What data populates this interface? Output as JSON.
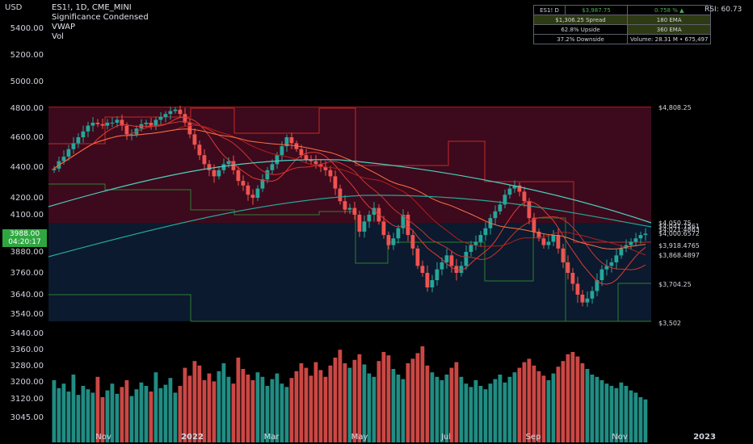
{
  "header": {
    "usd_label": "USD",
    "symbol_line": "ES1!, 1D, CME_MINI",
    "indicator1": "Significance Condensed",
    "indicator2": "VWAP",
    "indicator3": "Vol"
  },
  "stats_table": {
    "row1": {
      "symbol": "ES1! D",
      "price": "$3,987.75",
      "change": "0.758 % ▲",
      "rsi": "RSI: 60.73"
    },
    "row2": {
      "spread": "$1,306.25 Spread",
      "ema1": "180 EMA"
    },
    "row3": {
      "upside": "62.8% Upside",
      "ema2": "360 EMA"
    },
    "row4": {
      "downside": "37.2% Downside",
      "volume": "Volume:  28.31 M  •  675,497"
    }
  },
  "price_badge": {
    "price": "3988.00",
    "countdown": "04:20:17"
  },
  "colors": {
    "up": "#26a69a",
    "down": "#ef5350",
    "green_text": "#4caf50",
    "badge": "#2fa640",
    "upper_zone": "#3c0a1c",
    "lower_zone": "#0b1a2e"
  },
  "chart_data": {
    "type": "candlestick",
    "y_axis_labels": [
      "5400.00",
      "5200.00",
      "5000.00",
      "4800.00",
      "4600.00",
      "4400.00",
      "4200.00",
      "4100.00",
      "3880.00",
      "3760.00",
      "3640.00",
      "3540.00",
      "3440.00",
      "3360.00",
      "3280.00",
      "3200.00",
      "3120.00",
      "3045.00"
    ],
    "x_axis_labels": [
      "Nov",
      "2022",
      "Mar",
      "May",
      "Jul",
      "Sep",
      "Nov",
      "2023"
    ],
    "level_labels": [
      "$4,808.25",
      "$4,050.75",
      "$4,041.7561",
      "$4,021.4863",
      "$4,000.6572",
      "$3,918.4765",
      "$3,868.4897",
      "$3,704.25",
      "$3,502"
    ],
    "levels": {
      "high": 4808.25,
      "low": 3502,
      "ema180": 4050.75,
      "ema360": 4041.7561
    },
    "close_series": [
      4390,
      4440,
      4470,
      4520,
      4560,
      4600,
      4640,
      4680,
      4700,
      4690,
      4680,
      4700,
      4700,
      4720,
      4680,
      4620,
      4620,
      4660,
      4690,
      4700,
      4680,
      4720,
      4740,
      4760,
      4780,
      4790,
      4760,
      4700,
      4620,
      4550,
      4480,
      4420,
      4380,
      4340,
      4380,
      4420,
      4440,
      4380,
      4310,
      4280,
      4220,
      4200,
      4260,
      4320,
      4380,
      4420,
      4480,
      4540,
      4600,
      4560,
      4520,
      4480,
      4450,
      4440,
      4420,
      4400,
      4380,
      4340,
      4260,
      4180,
      4130,
      4140,
      4100,
      4000,
      4060,
      4100,
      4140,
      4060,
      3980,
      3920,
      3960,
      4020,
      4100,
      3980,
      3900,
      3800,
      3760,
      3680,
      3720,
      3780,
      3820,
      3860,
      3800,
      3760,
      3800,
      3880,
      3920,
      3940,
      3980,
      4020,
      4080,
      4120,
      4160,
      4220,
      4260,
      4280,
      4240,
      4180,
      4080,
      4000,
      3960,
      3920,
      3940,
      3980,
      3900,
      3820,
      3760,
      3700,
      3640,
      3600,
      3620,
      3660,
      3720,
      3780,
      3800,
      3820,
      3860,
      3900,
      3920,
      3940,
      3960,
      3980,
      3988
    ],
    "volume_series": [
      0.55,
      0.48,
      0.52,
      0.45,
      0.6,
      0.42,
      0.5,
      0.47,
      0.44,
      0.58,
      0.4,
      0.46,
      0.52,
      0.43,
      0.49,
      0.55,
      0.41,
      0.47,
      0.53,
      0.5,
      0.45,
      0.62,
      0.48,
      0.51,
      0.57,
      0.44,
      0.5,
      0.66,
      0.59,
      0.72,
      0.68,
      0.55,
      0.61,
      0.54,
      0.63,
      0.7,
      0.58,
      0.52,
      0.75,
      0.65,
      0.6,
      0.55,
      0.62,
      0.58,
      0.5,
      0.56,
      0.61,
      0.52,
      0.49,
      0.57,
      0.63,
      0.7,
      0.66,
      0.59,
      0.71,
      0.64,
      0.58,
      0.68,
      0.75,
      0.82,
      0.7,
      0.66,
      0.73,
      0.78,
      0.69,
      0.61,
      0.58,
      0.72,
      0.8,
      0.77,
      0.65,
      0.6,
      0.56,
      0.7,
      0.74,
      0.79,
      0.85,
      0.68,
      0.62,
      0.58,
      0.55,
      0.6,
      0.66,
      0.71,
      0.58,
      0.52,
      0.49,
      0.55,
      0.5,
      0.47,
      0.52,
      0.56,
      0.6,
      0.53,
      0.58,
      0.62,
      0.66,
      0.71,
      0.74,
      0.68,
      0.63,
      0.59,
      0.55,
      0.61,
      0.67,
      0.72,
      0.78,
      0.8,
      0.76,
      0.7,
      0.65,
      0.6,
      0.58,
      0.55,
      0.52,
      0.5,
      0.48,
      0.53,
      0.5,
      0.46,
      0.44,
      0.4,
      0.38
    ]
  }
}
